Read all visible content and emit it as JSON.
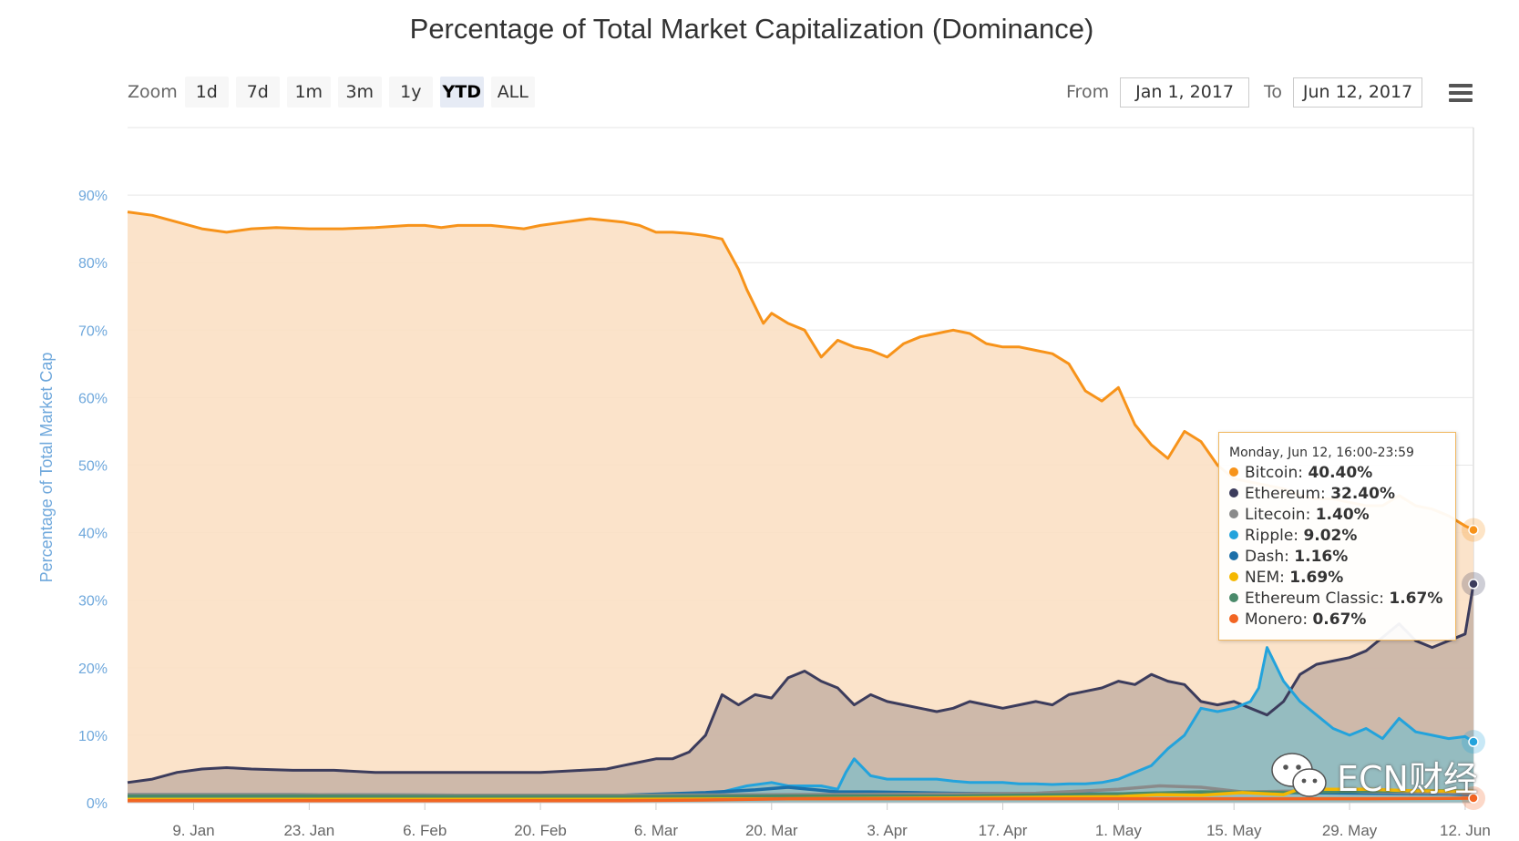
{
  "title": "Percentage of Total Market Capitalization (Dominance)",
  "toolbar": {
    "zoom_label": "Zoom",
    "zoom_buttons": [
      "1d",
      "7d",
      "1m",
      "3m",
      "1y",
      "YTD",
      "ALL"
    ],
    "active_zoom": "YTD",
    "from_label": "From",
    "from_value": "Jan 1, 2017",
    "to_label": "To",
    "to_value": "Jun 12, 2017"
  },
  "tooltip": {
    "header": "Monday, Jun 12, 16:00-23:59",
    "rows": [
      {
        "label": "Bitcoin",
        "value": "40.40%",
        "color": "#f7931a"
      },
      {
        "label": "Ethereum",
        "value": "32.40%",
        "color": "#3c3c5c"
      },
      {
        "label": "Litecoin",
        "value": "1.40%",
        "color": "#8a8a8a"
      },
      {
        "label": "Ripple",
        "value": "9.02%",
        "color": "#23a3dc"
      },
      {
        "label": "Dash",
        "value": "1.16%",
        "color": "#1c6fa8"
      },
      {
        "label": "NEM",
        "value": "1.69%",
        "color": "#f5b800"
      },
      {
        "label": "Ethereum Classic",
        "value": "1.67%",
        "color": "#4a8a6a"
      },
      {
        "label": "Monero",
        "value": "0.67%",
        "color": "#f26522"
      }
    ]
  },
  "watermark": {
    "text": "ECN财经"
  },
  "chart_data": {
    "type": "area",
    "title": "Percentage of Total Market Capitalization (Dominance)",
    "ylabel": "Percentage of Total Market Cap",
    "ylim": [
      0,
      100
    ],
    "y_ticks": [
      "0%",
      "10%",
      "20%",
      "30%",
      "40%",
      "50%",
      "60%",
      "70%",
      "80%",
      "90%"
    ],
    "x_ticks": [
      "9. Jan",
      "23. Jan",
      "6. Feb",
      "20. Feb",
      "6. Mar",
      "20. Mar",
      "3. Apr",
      "17. Apr",
      "1. May",
      "15. May",
      "29. May",
      "12. Jun"
    ],
    "x_tick_days": [
      8,
      22,
      36,
      50,
      64,
      78,
      92,
      106,
      120,
      134,
      148,
      162
    ],
    "x_range_days": [
      0,
      163
    ],
    "grid": true,
    "series": [
      {
        "name": "Bitcoin",
        "color": "#f7931a",
        "fill": "#fbe0c4",
        "x": [
          0,
          3,
          6,
          9,
          12,
          15,
          18,
          22,
          26,
          30,
          34,
          36,
          38,
          40,
          44,
          48,
          50,
          53,
          56,
          60,
          62,
          64,
          66,
          68,
          70,
          72,
          74,
          75,
          77,
          78,
          80,
          82,
          83,
          84,
          86,
          88,
          90,
          92,
          94,
          96,
          98,
          100,
          102,
          104,
          106,
          108,
          110,
          112,
          114,
          116,
          118,
          120,
          122,
          124,
          126,
          128,
          130,
          132,
          134,
          136,
          138,
          140,
          142,
          144,
          146,
          148,
          150,
          152,
          154,
          156,
          158,
          160,
          162,
          163
        ],
        "y": [
          87.5,
          87,
          86,
          85,
          84.5,
          85,
          85.2,
          85,
          85,
          85.2,
          85.5,
          85.5,
          85.2,
          85.5,
          85.5,
          85,
          85.5,
          86,
          86.5,
          86,
          85.5,
          84.5,
          84.5,
          84.3,
          84,
          83.5,
          79,
          76,
          71,
          72.5,
          71,
          70,
          68,
          66,
          68.5,
          67.5,
          67,
          66,
          68,
          69,
          69.5,
          70,
          69.5,
          68,
          67.5,
          67.5,
          67,
          66.5,
          65,
          61,
          59.5,
          61.5,
          56,
          53,
          51,
          55,
          53.5,
          50,
          48,
          47.5,
          47,
          46.5,
          45.5,
          45,
          45,
          44.5,
          44,
          44,
          45.5,
          44,
          43.5,
          42.5,
          41,
          40.4
        ]
      },
      {
        "name": "Ethereum",
        "color": "#3c3c5c",
        "fill": "#c9b4a6",
        "x": [
          0,
          3,
          6,
          9,
          12,
          15,
          20,
          25,
          30,
          35,
          40,
          45,
          50,
          55,
          58,
          60,
          62,
          64,
          66,
          68,
          70,
          72,
          74,
          76,
          78,
          80,
          82,
          84,
          86,
          88,
          90,
          92,
          94,
          96,
          98,
          100,
          102,
          104,
          106,
          108,
          110,
          112,
          114,
          116,
          118,
          120,
          122,
          124,
          126,
          128,
          130,
          132,
          134,
          136,
          138,
          140,
          142,
          144,
          146,
          148,
          150,
          152,
          154,
          156,
          158,
          160,
          162,
          163
        ],
        "y": [
          3,
          3.5,
          4.5,
          5,
          5.2,
          5,
          4.8,
          4.8,
          4.5,
          4.5,
          4.5,
          4.5,
          4.5,
          4.8,
          5,
          5.5,
          6,
          6.5,
          6.5,
          7.5,
          10,
          16,
          14.5,
          16,
          15.5,
          18.5,
          19.5,
          18,
          17,
          14.5,
          16,
          15,
          14.5,
          14,
          13.5,
          14,
          15,
          14.5,
          14,
          14.5,
          15,
          14.5,
          16,
          16.5,
          17,
          18,
          17.5,
          19,
          18,
          17.5,
          15,
          14.5,
          15,
          14,
          13,
          15,
          19,
          20.5,
          21,
          21.5,
          22.5,
          24.5,
          26.5,
          24,
          23,
          24,
          25,
          32.4
        ]
      },
      {
        "name": "Ripple",
        "color": "#23a3dc",
        "fill": "#8fbcc2",
        "x": [
          0,
          10,
          20,
          30,
          40,
          50,
          60,
          66,
          70,
          75,
          78,
          80,
          82,
          84,
          86,
          87,
          88,
          90,
          92,
          94,
          96,
          98,
          100,
          102,
          104,
          106,
          108,
          110,
          112,
          114,
          116,
          118,
          120,
          122,
          124,
          126,
          128,
          130,
          132,
          134,
          136,
          137,
          138,
          140,
          142,
          144,
          146,
          148,
          150,
          152,
          154,
          156,
          158,
          160,
          162,
          163
        ],
        "y": [
          0.8,
          0.8,
          0.8,
          0.8,
          0.8,
          0.8,
          0.8,
          0.8,
          1,
          2.5,
          3,
          2.5,
          2.5,
          2.5,
          2,
          4.5,
          6.5,
          4,
          3.5,
          3.5,
          3.5,
          3.5,
          3.2,
          3,
          3,
          3,
          2.8,
          2.8,
          2.7,
          2.8,
          2.8,
          3,
          3.5,
          4.5,
          5.5,
          8,
          10,
          14,
          13.5,
          14,
          15,
          17,
          23,
          18,
          15,
          13,
          11,
          10,
          11,
          9.5,
          12.5,
          10.5,
          10,
          9.5,
          9.8,
          9.02
        ]
      },
      {
        "name": "Dash",
        "color": "#1c6fa8",
        "fill": "none",
        "x": [
          0,
          20,
          40,
          60,
          70,
          76,
          80,
          86,
          90,
          100,
          110,
          120,
          130,
          140,
          150,
          160,
          163
        ],
        "y": [
          1.2,
          1.2,
          1.1,
          1.1,
          1.5,
          1.9,
          2.3,
          1.6,
          1.6,
          1.4,
          1.3,
          1.3,
          1.5,
          1.5,
          1.4,
          1.3,
          1.16
        ]
      },
      {
        "name": "Litecoin",
        "color": "#8a8a8a",
        "fill": "none",
        "x": [
          0,
          20,
          40,
          60,
          80,
          100,
          110,
          120,
          125,
          130,
          135,
          140,
          145,
          150,
          155,
          160,
          163
        ],
        "y": [
          1.2,
          1.2,
          1.1,
          1.1,
          1.2,
          1.3,
          1.4,
          2.0,
          2.5,
          2.3,
          1.6,
          1.7,
          1.8,
          1.6,
          1.5,
          1.4,
          1.4
        ]
      },
      {
        "name": "Ethereum Classic",
        "color": "#4a8a6a",
        "fill": "none",
        "x": [
          0,
          20,
          40,
          60,
          80,
          100,
          120,
          130,
          140,
          150,
          160,
          163
        ],
        "y": [
          1.0,
          1.0,
          0.9,
          0.9,
          1.0,
          1.0,
          1.3,
          1.6,
          1.5,
          1.7,
          1.8,
          1.67
        ]
      },
      {
        "name": "NEM",
        "color": "#f5b800",
        "fill": "none",
        "x": [
          0,
          20,
          40,
          60,
          80,
          100,
          120,
          125,
          130,
          135,
          140,
          143,
          145,
          150,
          155,
          160,
          163
        ],
        "y": [
          0.5,
          0.5,
          0.5,
          0.5,
          0.6,
          0.7,
          0.9,
          1.2,
          1.1,
          1.5,
          1.2,
          2.5,
          2.0,
          2.0,
          1.8,
          1.7,
          1.69
        ]
      },
      {
        "name": "Monero",
        "color": "#f26522",
        "fill": "none",
        "x": [
          0,
          20,
          40,
          60,
          70,
          80,
          90,
          100,
          110,
          120,
          130,
          140,
          150,
          160,
          163
        ],
        "y": [
          0.3,
          0.3,
          0.3,
          0.3,
          0.4,
          0.6,
          0.6,
          0.6,
          0.6,
          0.6,
          0.6,
          0.6,
          0.6,
          0.65,
          0.67
        ]
      }
    ]
  }
}
